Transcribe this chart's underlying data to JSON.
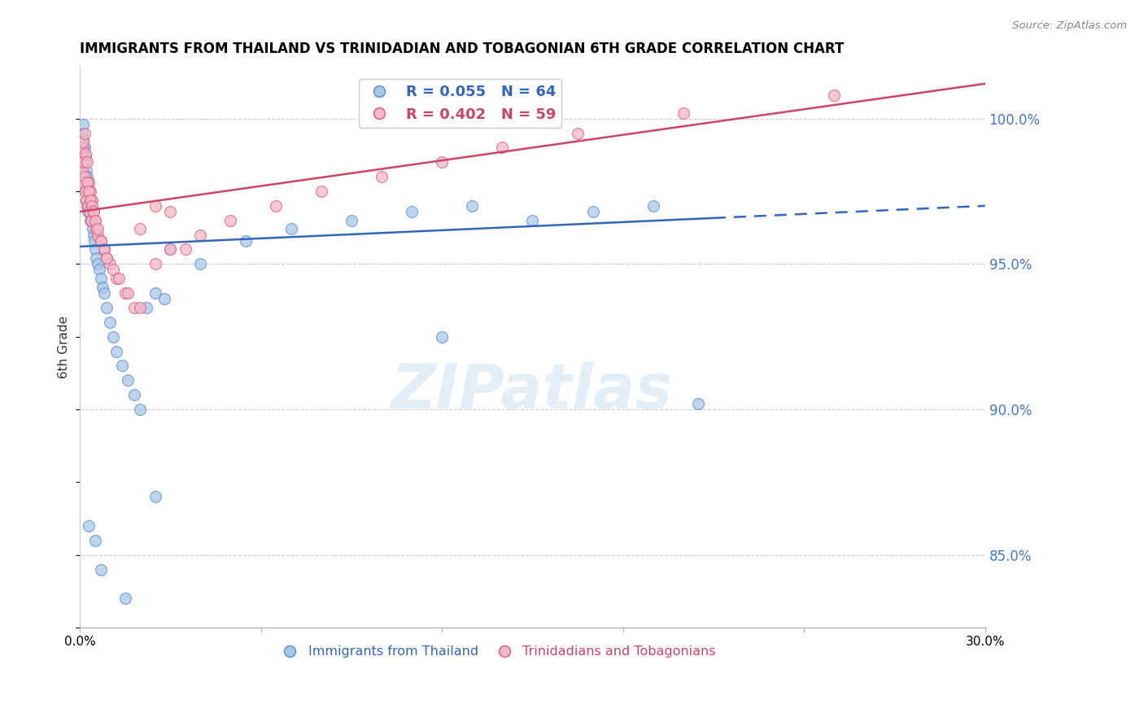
{
  "title": "IMMIGRANTS FROM THAILAND VS TRINIDADIAN AND TOBAGONIAN 6TH GRADE CORRELATION CHART",
  "source": "Source: ZipAtlas.com",
  "ylabel": "6th Grade",
  "xlim": [
    0.0,
    30.0
  ],
  "ylim": [
    82.5,
    101.8
  ],
  "yticks": [
    85.0,
    90.0,
    95.0,
    100.0
  ],
  "ytick_labels": [
    "85.0%",
    "90.0%",
    "95.0%",
    "100.0%"
  ],
  "blue_label": "Immigrants from Thailand",
  "pink_label": "Trinidadians and Tobagonians",
  "blue_R": 0.055,
  "blue_N": 64,
  "pink_R": 0.402,
  "pink_N": 59,
  "blue_color": "#a8c8e8",
  "pink_color": "#f5b8c8",
  "blue_edge_color": "#5588cc",
  "pink_edge_color": "#dd5577",
  "blue_line_color": "#3366bb",
  "pink_line_color": "#cc4466",
  "watermark_color": "#c8dff0",
  "blue_scatter_x": [
    0.05,
    0.05,
    0.08,
    0.08,
    0.1,
    0.1,
    0.12,
    0.12,
    0.15,
    0.15,
    0.18,
    0.18,
    0.2,
    0.2,
    0.22,
    0.22,
    0.25,
    0.25,
    0.28,
    0.28,
    0.3,
    0.32,
    0.35,
    0.35,
    0.38,
    0.4,
    0.42,
    0.45,
    0.48,
    0.5,
    0.55,
    0.6,
    0.65,
    0.7,
    0.75,
    0.8,
    0.9,
    1.0,
    1.1,
    1.2,
    1.4,
    1.6,
    1.8,
    2.0,
    2.2,
    2.5,
    2.8,
    3.0,
    4.0,
    5.5,
    7.0,
    9.0,
    11.0,
    13.0,
    15.0,
    17.0,
    19.0,
    20.5,
    12.0,
    2.5,
    0.3,
    0.5,
    0.7,
    1.5
  ],
  "blue_scatter_y": [
    98.5,
    99.2,
    98.8,
    99.5,
    99.0,
    99.8,
    98.5,
    99.3,
    98.0,
    99.0,
    97.8,
    98.7,
    97.5,
    98.5,
    97.2,
    98.2,
    97.0,
    98.0,
    96.8,
    97.8,
    97.5,
    97.2,
    97.0,
    96.5,
    96.8,
    96.5,
    96.2,
    96.0,
    95.8,
    95.5,
    95.2,
    95.0,
    94.8,
    94.5,
    94.2,
    94.0,
    93.5,
    93.0,
    92.5,
    92.0,
    91.5,
    91.0,
    90.5,
    90.0,
    93.5,
    94.0,
    93.8,
    95.5,
    95.0,
    95.8,
    96.2,
    96.5,
    96.8,
    97.0,
    96.5,
    96.8,
    97.0,
    90.2,
    92.5,
    87.0,
    86.0,
    85.5,
    84.5,
    83.5
  ],
  "pink_scatter_x": [
    0.05,
    0.05,
    0.08,
    0.08,
    0.1,
    0.12,
    0.15,
    0.15,
    0.18,
    0.2,
    0.22,
    0.25,
    0.28,
    0.3,
    0.32,
    0.35,
    0.38,
    0.4,
    0.45,
    0.5,
    0.55,
    0.6,
    0.7,
    0.8,
    0.9,
    1.0,
    1.2,
    1.5,
    1.8,
    2.0,
    2.5,
    3.0,
    3.5,
    0.25,
    0.3,
    0.35,
    0.4,
    0.45,
    0.5,
    0.6,
    0.7,
    0.8,
    0.9,
    1.1,
    1.3,
    1.6,
    2.0,
    2.5,
    3.0,
    4.0,
    5.0,
    6.5,
    8.0,
    10.0,
    12.0,
    14.0,
    16.5,
    20.0,
    25.0
  ],
  "pink_scatter_y": [
    97.8,
    98.8,
    98.2,
    99.0,
    98.5,
    99.2,
    98.0,
    99.5,
    97.5,
    98.8,
    97.2,
    98.5,
    97.0,
    97.8,
    96.8,
    97.5,
    96.5,
    97.2,
    96.8,
    96.5,
    96.2,
    96.0,
    95.8,
    95.5,
    95.2,
    95.0,
    94.5,
    94.0,
    93.5,
    96.2,
    97.0,
    96.8,
    95.5,
    97.8,
    97.5,
    97.2,
    97.0,
    96.8,
    96.5,
    96.2,
    95.8,
    95.5,
    95.2,
    94.8,
    94.5,
    94.0,
    93.5,
    95.0,
    95.5,
    96.0,
    96.5,
    97.0,
    97.5,
    98.0,
    98.5,
    99.0,
    99.5,
    100.2,
    100.8
  ],
  "blue_line_x0": 0.0,
  "blue_line_y0": 95.6,
  "blue_line_x1": 30.0,
  "blue_line_y1": 97.0,
  "blue_solid_end_x": 21.0,
  "pink_line_x0": 0.0,
  "pink_line_y0": 96.8,
  "pink_line_x1": 30.0,
  "pink_line_y1": 101.2
}
